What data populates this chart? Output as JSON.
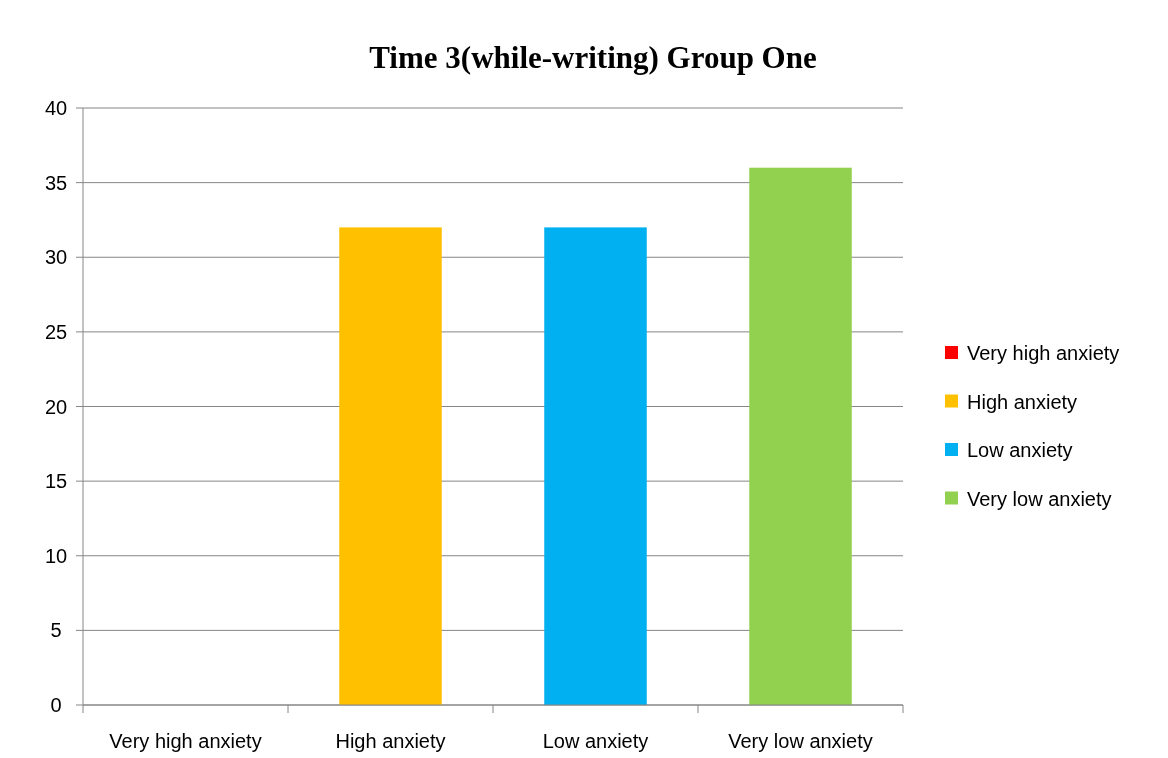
{
  "chart_data": {
    "type": "bar",
    "title": "Time 3(while-writing) Group One",
    "stacked": true,
    "categories": [
      "Very high anxiety",
      "High anxiety",
      "Low anxiety",
      "Very low anxiety"
    ],
    "series": [
      {
        "name": "Very high anxiety",
        "color": "#ff0000",
        "values": [
          0,
          null,
          null,
          null
        ]
      },
      {
        "name": "High anxiety",
        "color": "#ffc000",
        "values": [
          null,
          32,
          null,
          null
        ]
      },
      {
        "name": "Low anxiety",
        "color": "#00b0f0",
        "values": [
          null,
          null,
          32,
          null
        ]
      },
      {
        "name": "Very low anxiety",
        "color": "#92d050",
        "values": [
          null,
          null,
          null,
          36
        ]
      }
    ],
    "ylim": [
      0,
      40
    ],
    "yticks": [
      0,
      5,
      10,
      15,
      20,
      25,
      30,
      35,
      40
    ],
    "grid": "y",
    "legend": "right"
  }
}
